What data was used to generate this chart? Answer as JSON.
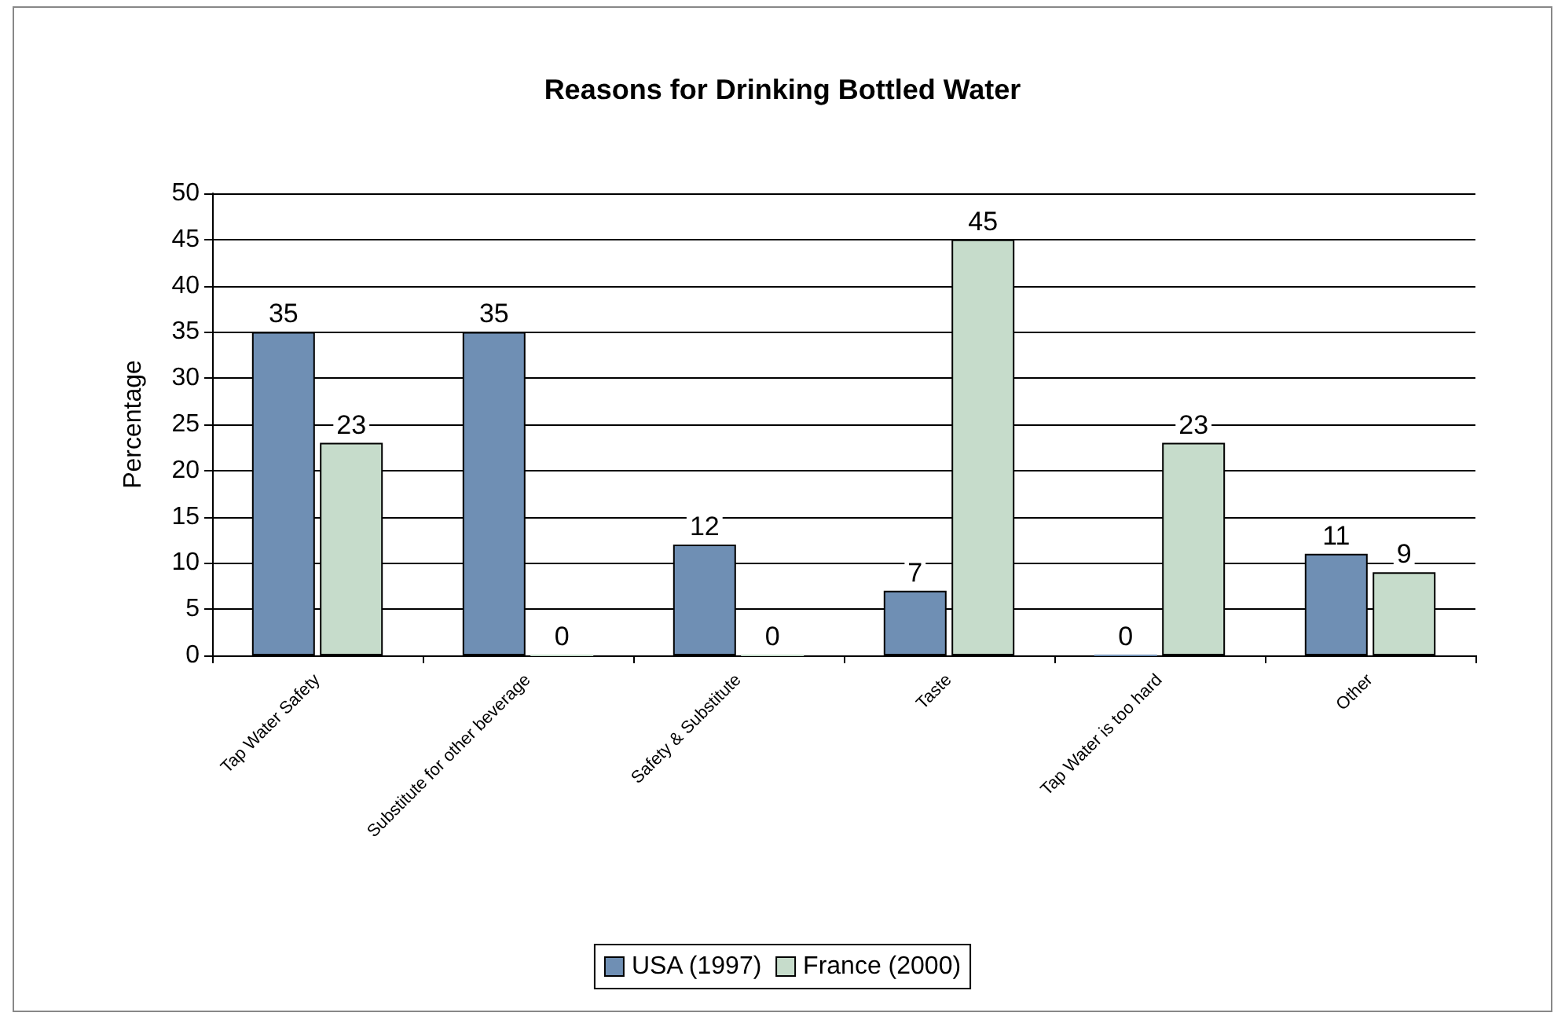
{
  "chart_data": {
    "type": "bar",
    "title": "Reasons for Drinking Bottled Water",
    "ylabel": "Percentage",
    "categories": [
      "Tap Water Safety",
      "Substitute for other beverage",
      "Safety & Substitute",
      "Taste",
      "Tap Water is too hard",
      "Other"
    ],
    "series": [
      {
        "name": "USA (1997)",
        "color": "#6f8fb4",
        "values": [
          35,
          35,
          12,
          7,
          0,
          11
        ]
      },
      {
        "name": "France (2000)",
        "color": "#c6dccb",
        "values": [
          23,
          0,
          0,
          45,
          23,
          9
        ]
      }
    ],
    "ylim": [
      0,
      50
    ],
    "yticks": [
      0,
      5,
      10,
      15,
      20,
      25,
      30,
      35,
      40,
      45,
      50
    ],
    "grid": "y",
    "legend": "bottom",
    "data_labels": true
  }
}
